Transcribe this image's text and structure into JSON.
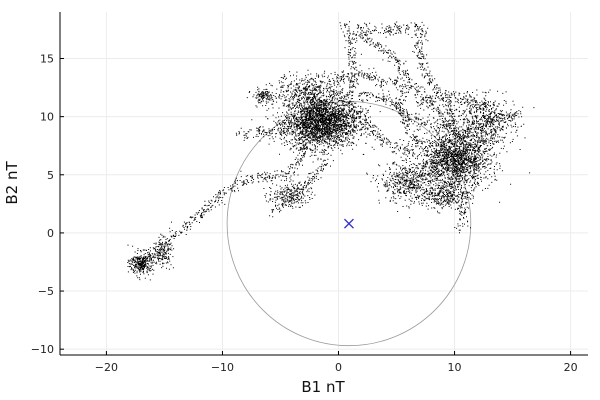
{
  "chart_data": {
    "type": "scatter",
    "title": "",
    "xlabel": "B1 nT",
    "ylabel": "B2 nT",
    "xlim": [
      -24,
      21.5
    ],
    "ylim": [
      -10.5,
      19
    ],
    "xticks": [
      -20,
      -10,
      0,
      10,
      20
    ],
    "xtick_labels": [
      "−20",
      "−10",
      "0",
      "10",
      "20"
    ],
    "yticks": [
      -10,
      -5,
      0,
      5,
      10,
      15
    ],
    "ytick_labels": [
      "−10",
      "−5",
      "0",
      "5",
      "10",
      "15"
    ],
    "grid": true,
    "legend": "none",
    "colors": {
      "points": "#000000",
      "marker": "#3333cc",
      "circle": "#9a9a9a",
      "grid": "#ececec",
      "axis": "#000000"
    },
    "marker": {
      "x": 0.9,
      "y": 0.8,
      "symbol": "x"
    },
    "circle": {
      "cx": 0.9,
      "cy": 0.8,
      "r": 10.5
    },
    "clusters": [
      {
        "x": -1.5,
        "y": 9.6,
        "sx": 1.6,
        "sy": 1.1,
        "n": 2600
      },
      {
        "x": 10,
        "y": 6.3,
        "sx": 1.5,
        "sy": 1.2,
        "n": 1800
      },
      {
        "x": 6.0,
        "y": 4.4,
        "sx": 1.2,
        "sy": 0.9,
        "n": 500
      },
      {
        "x": 12.5,
        "y": 9.5,
        "sx": 1.3,
        "sy": 1.1,
        "n": 600
      },
      {
        "x": -17.0,
        "y": -2.6,
        "sx": 0.5,
        "sy": 0.5,
        "n": 300
      },
      {
        "x": -15.2,
        "y": -1.6,
        "sx": 0.4,
        "sy": 0.6,
        "n": 150
      },
      {
        "x": -6.5,
        "y": 11.8,
        "sx": 0.5,
        "sy": 0.3,
        "n": 120
      },
      {
        "x": -4.3,
        "y": 3.3,
        "sx": 0.9,
        "sy": 0.5,
        "n": 200
      },
      {
        "x": -2.5,
        "y": 12.3,
        "sx": 1.5,
        "sy": 0.7,
        "n": 400
      },
      {
        "x": 9.0,
        "y": 3.2,
        "sx": 0.9,
        "sy": 0.6,
        "n": 300
      }
    ],
    "trails": [
      [
        [
          -17.5,
          -2.8
        ],
        [
          -14,
          0
        ],
        [
          -11,
          2.5
        ],
        [
          -9,
          4.2
        ],
        [
          -6.5,
          4.8
        ],
        [
          -4,
          5.2
        ],
        [
          -3,
          7.5
        ],
        [
          -2,
          8.7
        ]
      ],
      [
        [
          -5.8,
          1.8
        ],
        [
          -4,
          3.2
        ],
        [
          -2.5,
          4.5
        ],
        [
          -1,
          6.2
        ]
      ],
      [
        [
          0.4,
          18
        ],
        [
          1.2,
          16.5
        ],
        [
          1,
          15
        ],
        [
          1.4,
          13.5
        ],
        [
          0.5,
          11.2
        ]
      ],
      [
        [
          1.8,
          17.8
        ],
        [
          3,
          17.4
        ],
        [
          5,
          17.5
        ],
        [
          7.2,
          17.9
        ]
      ],
      [
        [
          1.5,
          17.3
        ],
        [
          3.5,
          16
        ],
        [
          5,
          14.8
        ],
        [
          6.5,
          12.5
        ],
        [
          8.5,
          10.5
        ],
        [
          10.5,
          8
        ]
      ],
      [
        [
          7.2,
          17.8
        ],
        [
          6.8,
          15.8
        ],
        [
          7.5,
          13.5
        ],
        [
          9.5,
          11
        ],
        [
          10.5,
          8
        ]
      ],
      [
        [
          2,
          12
        ],
        [
          4,
          11.5
        ],
        [
          6,
          10
        ],
        [
          8,
          9.5
        ],
        [
          10,
          9
        ]
      ],
      [
        [
          4.5,
          13.5
        ],
        [
          5.5,
          12.5
        ],
        [
          5.2,
          11
        ],
        [
          6,
          9
        ],
        [
          7,
          7.5
        ]
      ],
      [
        [
          11,
          3.5
        ],
        [
          10.8,
          2.2
        ],
        [
          10.7,
          0.4
        ]
      ],
      [
        [
          -8.5,
          8.5
        ],
        [
          -7,
          8.7
        ],
        [
          -5,
          8.8
        ],
        [
          -3,
          9.2
        ]
      ],
      [
        [
          12.5,
          9.8
        ],
        [
          14,
          10
        ],
        [
          15.6,
          10.3
        ]
      ],
      [
        [
          1,
          11
        ],
        [
          2.5,
          9.5
        ],
        [
          3.5,
          8.2
        ],
        [
          5,
          7.5
        ],
        [
          6.5,
          7
        ]
      ],
      [
        [
          -0.5,
          13
        ],
        [
          1,
          13.8
        ],
        [
          3,
          13.5
        ],
        [
          4,
          12.5
        ]
      ],
      [
        [
          7,
          11
        ],
        [
          9,
          12
        ],
        [
          11,
          11.5
        ],
        [
          13,
          11
        ]
      ]
    ]
  }
}
